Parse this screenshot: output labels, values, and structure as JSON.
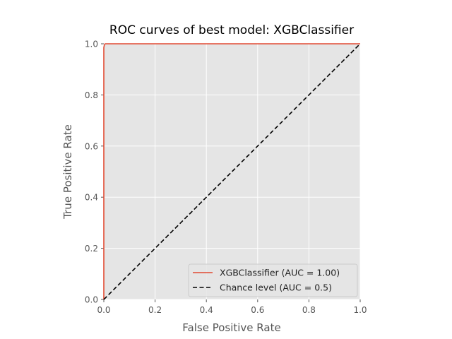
{
  "chart_data": {
    "type": "line",
    "title": "ROC curves of best model: XGBClassifier",
    "xlabel": "False Positive Rate",
    "ylabel": "True Positive Rate",
    "xlim": [
      0,
      1
    ],
    "ylim": [
      0,
      1
    ],
    "xticks": [
      "0.0",
      "0.2",
      "0.4",
      "0.6",
      "0.8",
      "1.0"
    ],
    "yticks": [
      "0.0",
      "0.2",
      "0.4",
      "0.6",
      "0.8",
      "1.0"
    ],
    "grid": true,
    "legend_position": "lower-right",
    "series": [
      {
        "name": "XGBClassifier (AUC = 1.00)",
        "color": "#E24A33",
        "style": "solid",
        "x": [
          0.0,
          0.0,
          0.0,
          0.002,
          0.005,
          0.01,
          1.0
        ],
        "y": [
          0.0,
          0.97,
          0.985,
          0.995,
          1.0,
          1.0,
          1.0
        ]
      },
      {
        "name": "Chance level (AUC = 0.5)",
        "color": "#000000",
        "style": "dashed",
        "x": [
          0.0,
          1.0
        ],
        "y": [
          0.0,
          1.0
        ]
      }
    ],
    "colors": {
      "plot_background": "#E5E5E5",
      "grid": "#FFFFFF",
      "legend_background": "#E5E5E5",
      "legend_border": "#CCCCCC"
    }
  }
}
